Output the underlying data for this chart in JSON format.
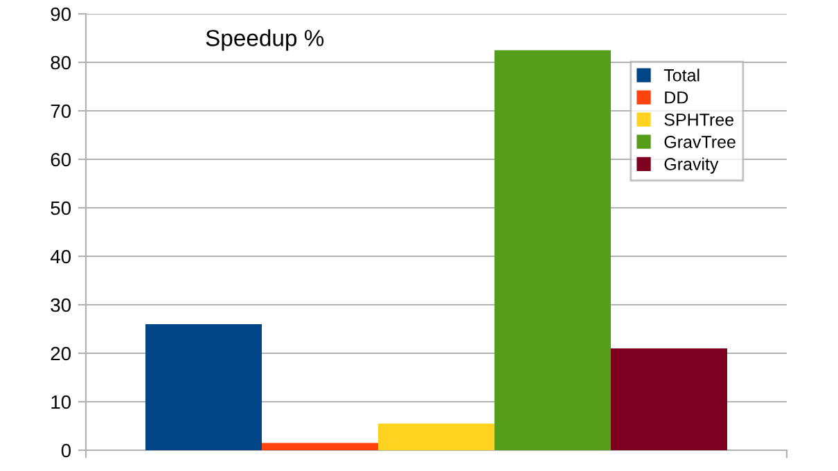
{
  "chart_data": {
    "type": "bar",
    "title": "Speedup %",
    "categories": [
      null
    ],
    "series": [
      {
        "name": "Total",
        "color": "#004586",
        "values": [
          26
        ]
      },
      {
        "name": "DD",
        "color": "#ff420e",
        "values": [
          1.5
        ]
      },
      {
        "name": "SPHTree",
        "color": "#ffd320",
        "values": [
          5.5
        ]
      },
      {
        "name": "GravTree",
        "color": "#579d1c",
        "values": [
          82.5
        ]
      },
      {
        "name": "Gravity",
        "color": "#7e0021",
        "values": [
          21
        ]
      }
    ],
    "ylim": [
      0,
      90
    ],
    "yticks": [
      0,
      10,
      20,
      30,
      40,
      50,
      60,
      70,
      80,
      90
    ],
    "grid": "y",
    "legend": "top right"
  }
}
